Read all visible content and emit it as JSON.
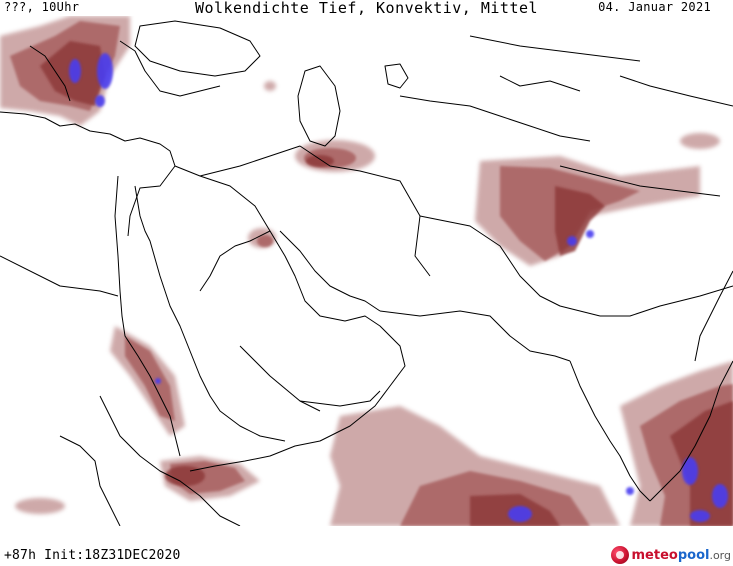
{
  "header": {
    "left_label": "???, 10Uhr",
    "title": "Wolkendichte  Tief, Konvektiv, Mittel",
    "date": "04. Januar 2021"
  },
  "footer": {
    "forecast_info": "+87h Init:18Z31DEC2020"
  },
  "logo": {
    "part1": "meteo",
    "part2": "pool",
    "part3": ".org"
  },
  "colors": {
    "cloud_light": "#c9a0a0",
    "cloud_mid": "#a86060",
    "cloud_dark": "#8e3a3a",
    "cloud_core": "#4a3cf0",
    "land_border": "#000000",
    "background": "#ffffff"
  }
}
